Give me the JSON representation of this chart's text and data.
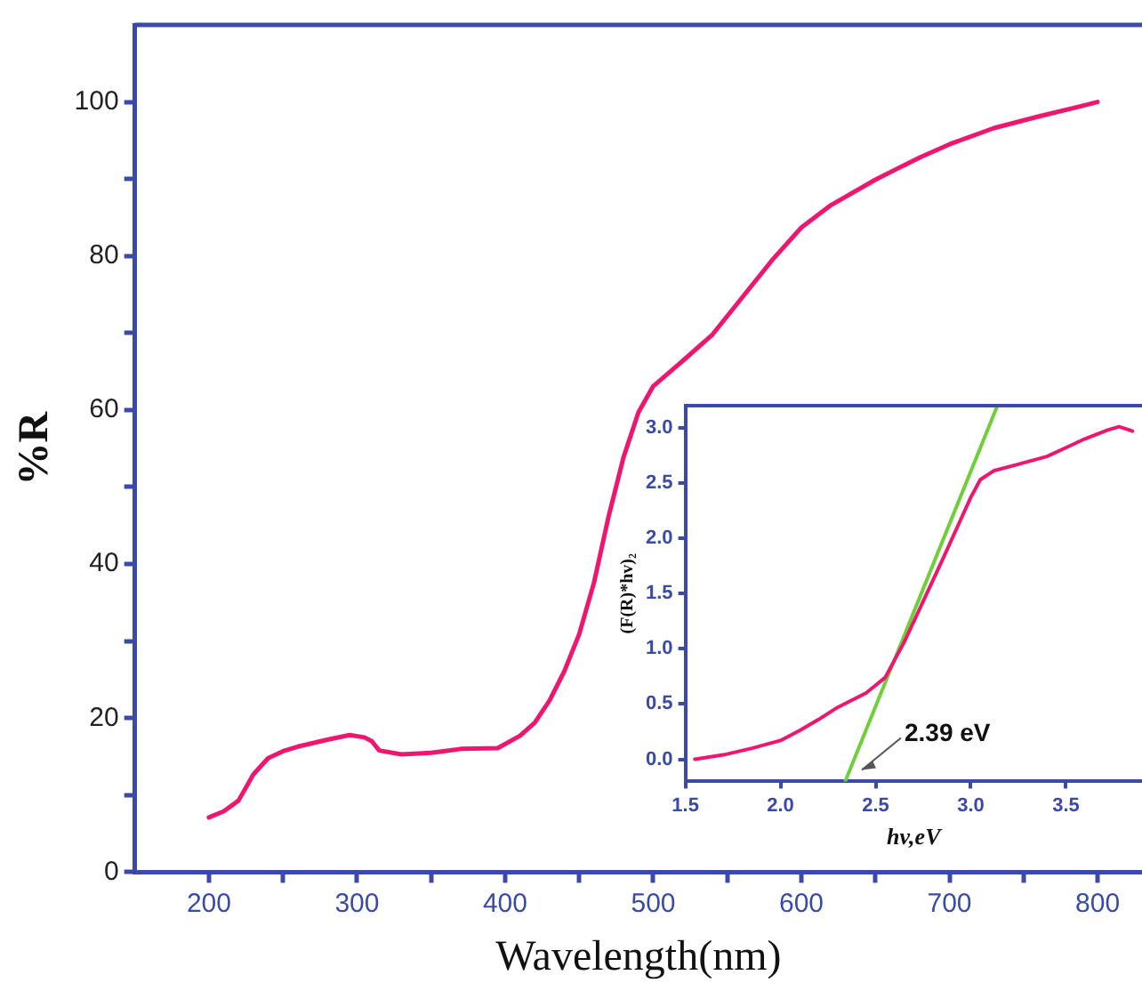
{
  "chart_data": [
    {
      "type": "line",
      "xlabel": "Wavelength(nm)",
      "ylabel": "%R",
      "xlim": [
        150,
        830
      ],
      "ylim": [
        0,
        110
      ],
      "xticks": [
        200,
        {
          "value": 250,
          "label": null
        },
        300,
        {
          "value": 350,
          "label": null
        },
        400,
        {
          "value": 450,
          "label": null
        },
        500,
        {
          "value": 550,
          "label": null
        },
        600,
        {
          "value": 650,
          "label": null
        },
        700,
        {
          "value": 750,
          "label": null
        },
        800
      ],
      "yticks": [
        0,
        {
          "value": 10,
          "label": null
        },
        20,
        {
          "value": 30,
          "label": null
        },
        40,
        {
          "value": 50,
          "label": null
        },
        60,
        {
          "value": 70,
          "label": null
        },
        80,
        {
          "value": 90,
          "label": null
        },
        100
      ],
      "grid": false,
      "legend": false,
      "marker": "none",
      "line_style": "solid",
      "series": [
        {
          "color": "#f0166e",
          "x": [
            200,
            210,
            220,
            230,
            240,
            250,
            260,
            280,
            295,
            305,
            310,
            315,
            330,
            350,
            370,
            395,
            410,
            420,
            430,
            440,
            450,
            460,
            470,
            480,
            490,
            500,
            520,
            540,
            560,
            580,
            600,
            620,
            650,
            680,
            700,
            730,
            760,
            790,
            800
          ],
          "values": [
            7.1,
            7.9,
            9.3,
            12.7,
            14.8,
            15.7,
            16.3,
            17.2,
            17.8,
            17.5,
            17.0,
            15.8,
            15.3,
            15.5,
            16.0,
            16.1,
            17.7,
            19.4,
            22.3,
            26.1,
            30.9,
            37.6,
            46.3,
            53.9,
            59.7,
            63.1,
            66.4,
            69.8,
            74.6,
            79.4,
            83.7,
            86.6,
            89.9,
            92.8,
            94.5,
            96.6,
            98.1,
            99.5,
            100.0
          ]
        }
      ]
    },
    {
      "type": "line",
      "xlabel": "hv,eV",
      "ylabel": "(F(R)*hv)₂",
      "xlim": [
        1.5,
        3.9
      ],
      "ylim": [
        -0.2,
        3.2
      ],
      "xticks": [
        1.5,
        {
          "value": 2,
          "label": "2.0"
        },
        2.5,
        {
          "value": 3,
          "label": "3.0"
        },
        3.5
      ],
      "yticks": [
        {
          "value": 0,
          "label": "0.0"
        },
        0.5,
        {
          "value": 1,
          "label": "1.0"
        },
        1.5,
        {
          "value": 2,
          "label": "2.0"
        },
        2.5,
        {
          "value": 3,
          "label": "3.0"
        }
      ],
      "grid": false,
      "legend": false,
      "marker": "none",
      "line_style": "solid",
      "annotations": [
        {
          "text": "2.39 eV",
          "x": 2.39,
          "y": 0
        }
      ],
      "series": [
        {
          "color": "#f0166e",
          "x": [
            1.55,
            1.7,
            1.85,
            2.0,
            2.1,
            2.2,
            2.3,
            2.45,
            2.55,
            2.65,
            2.75,
            2.85,
            2.95,
            3.0,
            3.05,
            3.12,
            3.25,
            3.4,
            3.5,
            3.6,
            3.72,
            3.78,
            3.85
          ],
          "values": [
            0,
            0.04,
            0.1,
            0.17,
            0.26,
            0.36,
            0.47,
            0.6,
            0.74,
            1.06,
            1.43,
            1.8,
            2.18,
            2.37,
            2.53,
            2.61,
            2.67,
            2.74,
            2.82,
            2.9,
            2.98,
            3.01,
            2.97
          ]
        },
        {
          "type": "line",
          "color": "#6fcf3a",
          "x": [
            2.34,
            3.14
          ],
          "values": [
            -0.2,
            3.2
          ]
        }
      ]
    }
  ]
}
